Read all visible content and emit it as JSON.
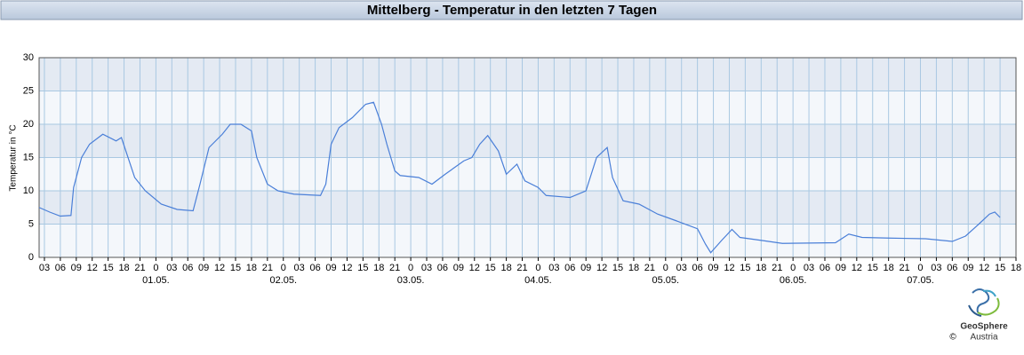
{
  "header": {
    "title": "Mittelberg - Temperatur in den letzten 7 Tagen"
  },
  "chart_data": {
    "type": "line",
    "y_label": "Temperatur in °C",
    "color": "#4a7fd8",
    "x": [
      2,
      4,
      6,
      8,
      8.5,
      10,
      11.5,
      14,
      16.5,
      17.5,
      20,
      22,
      25,
      28,
      31,
      32.3,
      34,
      36.5,
      38,
      40,
      42,
      43,
      45,
      47,
      50,
      55,
      56,
      57,
      58.5,
      61,
      63.5,
      65,
      66.5,
      67.5,
      69,
      70,
      73.5,
      76,
      78.5,
      82,
      83.5,
      85,
      86.5,
      88.5,
      90,
      92,
      93.5,
      96,
      97.5,
      102,
      105,
      107,
      109,
      110,
      112,
      115,
      118.5,
      122,
      126,
      127.5,
      128.5,
      130.5,
      132.5,
      134,
      138.5,
      142,
      152,
      154.5,
      157,
      162,
      169,
      174,
      176.5,
      179,
      181,
      182,
      183
    ],
    "values": [
      7.5,
      6.8,
      6.2,
      6.3,
      10.5,
      15,
      17,
      18.5,
      17.5,
      18,
      12,
      10,
      8,
      7.2,
      7,
      11,
      16.5,
      18.5,
      20,
      20,
      19,
      15,
      11,
      10,
      9.5,
      9.3,
      11,
      17,
      19.5,
      21,
      23,
      23.3,
      20,
      17,
      13,
      12.3,
      12,
      11,
      12.5,
      14.5,
      15,
      17,
      18.3,
      16,
      12.5,
      14,
      11.5,
      10.5,
      9.3,
      9,
      10,
      15,
      16.5,
      12,
      8.5,
      8,
      6.5,
      5.5,
      4.3,
      2,
      0.7,
      2.5,
      4.2,
      3,
      2.5,
      2.1,
      2.2,
      3.5,
      3,
      2.9,
      2.8,
      2.4,
      3.2,
      5,
      6.5,
      6.8,
      6
    ],
    "xlim": [
      2,
      186
    ],
    "ylim": [
      0,
      30
    ],
    "yticks": [
      0,
      5,
      10,
      15,
      20,
      25,
      30
    ],
    "grid": true,
    "xticks": [
      {
        "value": 3,
        "label": "03"
      },
      {
        "value": 6,
        "label": "06"
      },
      {
        "value": 9,
        "label": "09"
      },
      12,
      15,
      18,
      21,
      {
        "value": 24,
        "label": "0"
      },
      {
        "value": 27,
        "label": "03"
      },
      {
        "value": 30,
        "label": "06"
      },
      {
        "value": 33,
        "label": "09"
      },
      {
        "value": 36,
        "label": "12"
      },
      {
        "value": 39,
        "label": "15"
      },
      {
        "value": 42,
        "label": "18"
      },
      {
        "value": 45,
        "label": "21"
      },
      {
        "value": 48,
        "label": "0"
      },
      {
        "value": 51,
        "label": "03"
      },
      {
        "value": 54,
        "label": "06"
      },
      {
        "value": 57,
        "label": "09"
      },
      {
        "value": 60,
        "label": "12"
      },
      {
        "value": 63,
        "label": "15"
      },
      {
        "value": 66,
        "label": "18"
      },
      {
        "value": 69,
        "label": "21"
      },
      {
        "value": 72,
        "label": "0"
      },
      {
        "value": 75,
        "label": "03"
      },
      {
        "value": 78,
        "label": "06"
      },
      {
        "value": 81,
        "label": "09"
      },
      {
        "value": 84,
        "label": "12"
      },
      {
        "value": 87,
        "label": "15"
      },
      {
        "value": 90,
        "label": "18"
      },
      {
        "value": 93,
        "label": "21"
      },
      {
        "value": 96,
        "label": "0"
      },
      {
        "value": 99,
        "label": "03"
      },
      {
        "value": 102,
        "label": "06"
      },
      {
        "value": 105,
        "label": "09"
      },
      {
        "value": 108,
        "label": "12"
      },
      {
        "value": 111,
        "label": "15"
      },
      {
        "value": 114,
        "label": "18"
      },
      {
        "value": 117,
        "label": "21"
      },
      {
        "value": 120,
        "label": "0"
      },
      {
        "value": 123,
        "label": "03"
      },
      {
        "value": 126,
        "label": "06"
      },
      {
        "value": 129,
        "label": "09"
      },
      {
        "value": 132,
        "label": "12"
      },
      {
        "value": 135,
        "label": "15"
      },
      {
        "value": 138,
        "label": "18"
      },
      {
        "value": 141,
        "label": "21"
      },
      {
        "value": 144,
        "label": "0"
      },
      {
        "value": 147,
        "label": "03"
      },
      {
        "value": 150,
        "label": "06"
      },
      {
        "value": 153,
        "label": "09"
      },
      {
        "value": 156,
        "label": "12"
      },
      {
        "value": 159,
        "label": "15"
      },
      {
        "value": 162,
        "label": "18"
      },
      {
        "value": 165,
        "label": "21"
      },
      {
        "value": 168,
        "label": "0"
      },
      {
        "value": 171,
        "label": "03"
      },
      {
        "value": 174,
        "label": "06"
      },
      {
        "value": 177,
        "label": "09"
      },
      {
        "value": 180,
        "label": "12"
      },
      {
        "value": 183,
        "label": "15"
      },
      {
        "value": 186,
        "label": "18"
      }
    ],
    "day_labels": [
      {
        "value": 24,
        "label": "01.05."
      },
      {
        "value": 48,
        "label": "02.05."
      },
      {
        "value": 72,
        "label": "03.05."
      },
      {
        "value": 96,
        "label": "04.05."
      },
      {
        "value": 120,
        "label": "05.05."
      },
      {
        "value": 144,
        "label": "06.05."
      },
      {
        "value": 168,
        "label": "07.05."
      }
    ]
  },
  "logo": {
    "name": "GeoSphere",
    "sub": "Austria",
    "copyright": "©"
  }
}
